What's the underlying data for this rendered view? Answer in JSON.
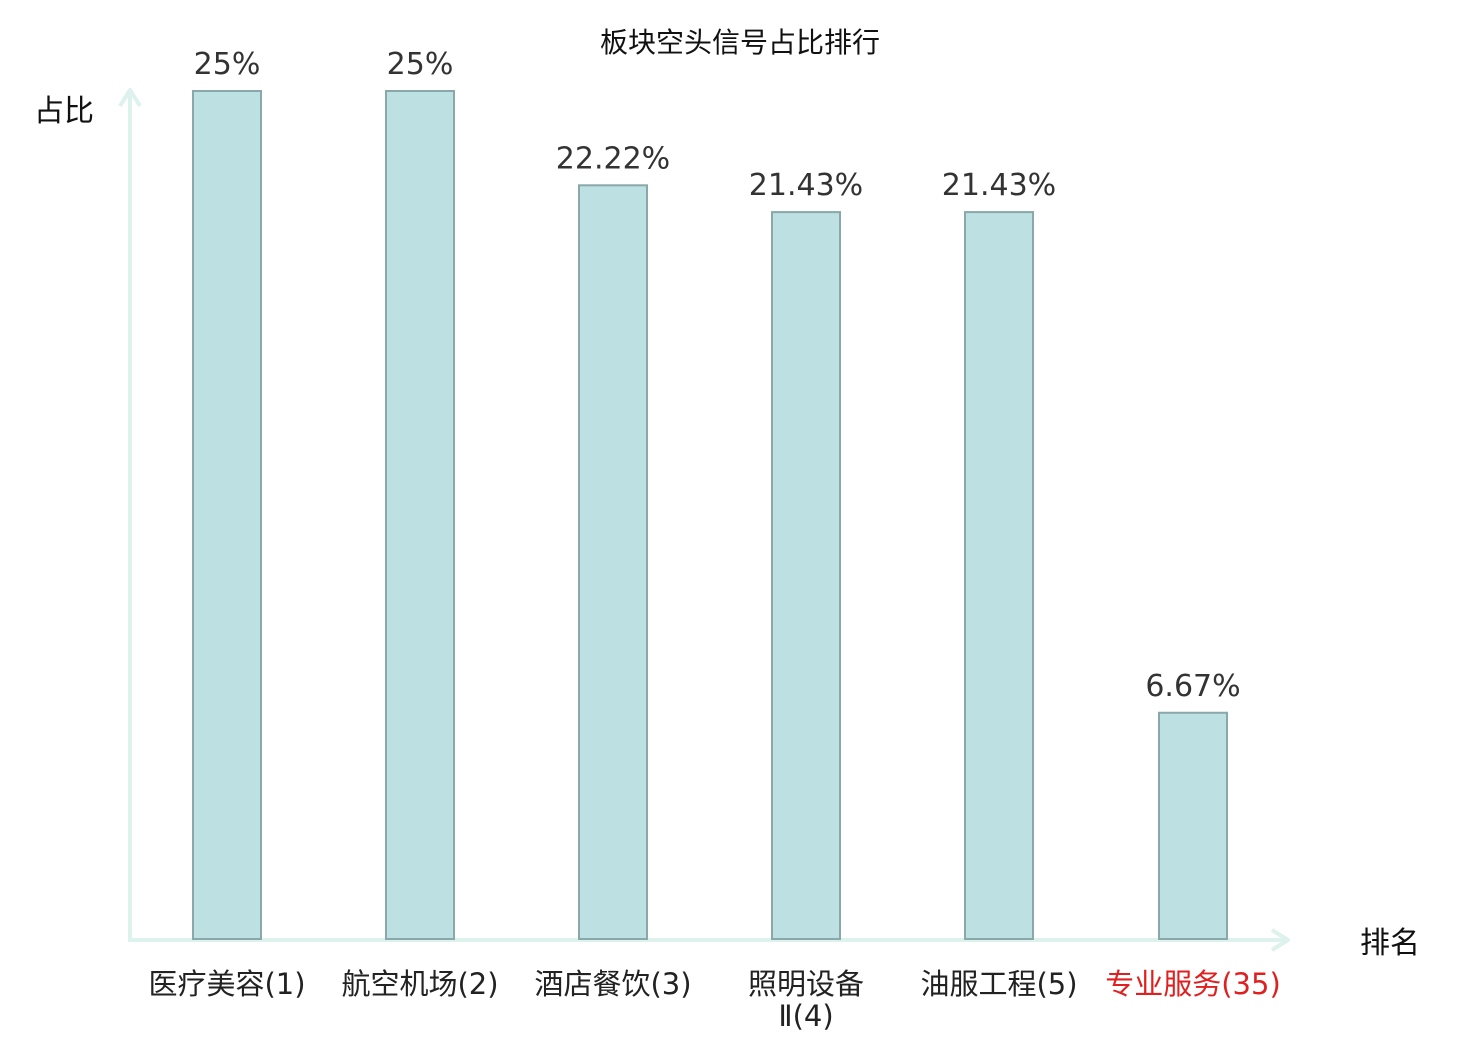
{
  "chart_data": {
    "type": "bar",
    "title": "板块空头信号占比排行",
    "xlabel": "排名",
    "ylabel": "占比",
    "categories": [
      [
        "医疗美容(1)"
      ],
      [
        "航空机场(2)"
      ],
      [
        "酒店餐饮(3)"
      ],
      [
        "照明设备",
        "Ⅱ(4)"
      ],
      [
        "油服工程(5)"
      ],
      [
        "专业服务(35)"
      ]
    ],
    "values": [
      25,
      25,
      22.22,
      21.43,
      21.43,
      6.67
    ],
    "value_labels": [
      "25%",
      "25%",
      "22.22%",
      "21.43%",
      "21.43%",
      "6.67%"
    ],
    "highlight_index": 5,
    "ylim": [
      0,
      25
    ],
    "grid": false,
    "legend": "none"
  },
  "colors": {
    "bar_fill": "#bde0e2",
    "bar_stroke": "#8aa7a9",
    "axis": "#ddf1ed",
    "highlight_text": "#e02020",
    "text": "#222222"
  }
}
